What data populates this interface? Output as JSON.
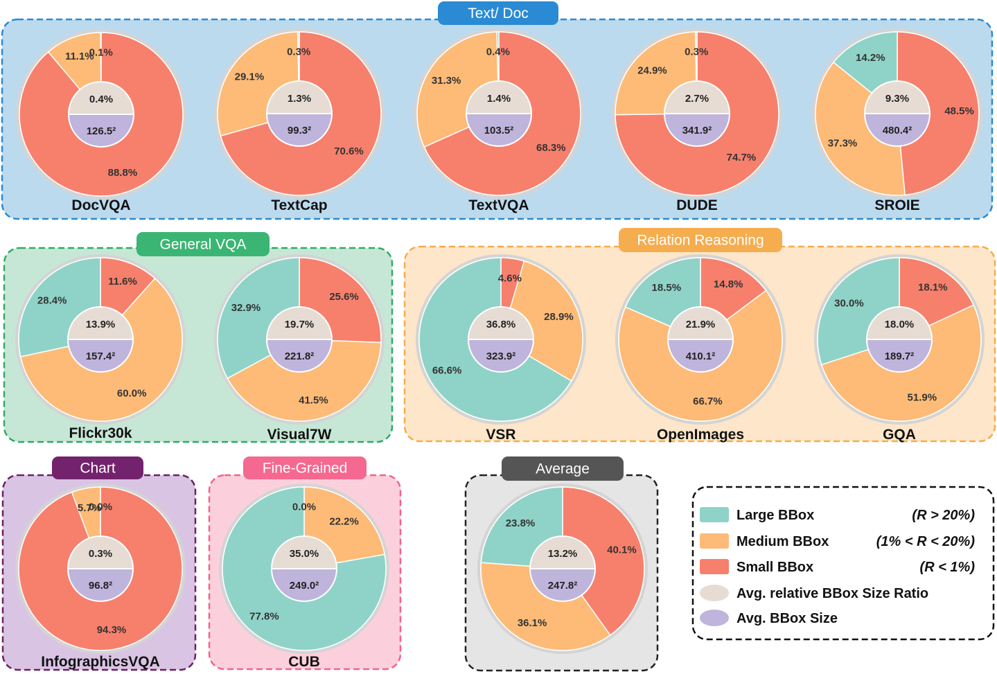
{
  "colors": {
    "large": "#8fd3c8",
    "medium": "#fdbb77",
    "small": "#f7806c",
    "ratio": "#e6dcd4",
    "size": "#bfb4dc",
    "ring": "#d4d4d4"
  },
  "groups": [
    {
      "id": "textdoc",
      "title": "Text/ Doc",
      "fill": "#bcdaee",
      "stroke": "#2a8ad3",
      "title_bg": "#2a8ad3",
      "title_color": "#ffffff"
    },
    {
      "id": "generalvqa",
      "title": "General VQA",
      "fill": "#c7e7d6",
      "stroke": "#2eaa67",
      "title_bg": "#3bb573",
      "title_color": "#ffffff"
    },
    {
      "id": "relation",
      "title": "Relation Reasoning",
      "fill": "#fde6c9",
      "stroke": "#f4ac4b",
      "title_bg": "#f6ad4e",
      "title_color": "#ffffff"
    },
    {
      "id": "chart",
      "title": "Chart",
      "fill": "#d9c4e4",
      "stroke": "#6c1f66",
      "title_bg": "#73226d",
      "title_color": "#ffffff"
    },
    {
      "id": "finegrained",
      "title": "Fine-Grained",
      "fill": "#fbd0dc",
      "stroke": "#f3628a",
      "title_bg": "#f5688f",
      "title_color": "#ffffff"
    },
    {
      "id": "average",
      "title": "Average",
      "fill": "#e5e5e5",
      "stroke": "#222222",
      "title_bg": "#555555",
      "title_color": "#ffffff"
    }
  ],
  "chart_data": [
    {
      "type": "pie",
      "name": "DocVQA",
      "group": "textdoc",
      "categories": [
        "Large BBox",
        "Medium BBox",
        "Small BBox"
      ],
      "values": [
        0.1,
        11.1,
        88.8
      ],
      "labels": [
        "0.1%",
        "11.1%",
        "88.8%"
      ],
      "ratio": "0.4%",
      "size": "126.5²"
    },
    {
      "type": "pie",
      "name": "TextCap",
      "group": "textdoc",
      "categories": [
        "Large BBox",
        "Medium BBox",
        "Small BBox"
      ],
      "values": [
        0.3,
        29.1,
        70.6
      ],
      "labels": [
        "0.3%",
        "29.1%",
        "70.6%"
      ],
      "ratio": "1.3%",
      "size": "99.3²"
    },
    {
      "type": "pie",
      "name": "TextVQA",
      "group": "textdoc",
      "categories": [
        "Large BBox",
        "Medium BBox",
        "Small BBox"
      ],
      "values": [
        0.4,
        31.3,
        68.3
      ],
      "labels": [
        "0.4%",
        "31.3%",
        "68.3%"
      ],
      "ratio": "1.4%",
      "size": "103.5²"
    },
    {
      "type": "pie",
      "name": "DUDE",
      "group": "textdoc",
      "categories": [
        "Large BBox",
        "Medium BBox",
        "Small BBox"
      ],
      "values": [
        0.3,
        24.9,
        74.7
      ],
      "labels": [
        "0.3%",
        "24.9%",
        "74.7%"
      ],
      "ratio": "2.7%",
      "size": "341.9²"
    },
    {
      "type": "pie",
      "name": "SROIE",
      "group": "textdoc",
      "categories": [
        "Large BBox",
        "Medium BBox",
        "Small BBox"
      ],
      "values": [
        14.2,
        37.3,
        48.5
      ],
      "labels": [
        "14.2%",
        "37.3%",
        "48.5%"
      ],
      "ratio": "9.3%",
      "size": "480.4²"
    },
    {
      "type": "pie",
      "name": "Flickr30k",
      "group": "generalvqa",
      "categories": [
        "Large BBox",
        "Medium BBox",
        "Small BBox"
      ],
      "values": [
        28.4,
        60.0,
        11.6
      ],
      "labels": [
        "28.4%",
        "60.0%",
        "11.6%"
      ],
      "ratio": "13.9%",
      "size": "157.4²"
    },
    {
      "type": "pie",
      "name": "Visual7W",
      "group": "generalvqa",
      "categories": [
        "Large BBox",
        "Medium BBox",
        "Small BBox"
      ],
      "values": [
        32.9,
        41.5,
        25.6
      ],
      "labels": [
        "32.9%",
        "41.5%",
        "25.6%"
      ],
      "ratio": "19.7%",
      "size": "221.8²"
    },
    {
      "type": "pie",
      "name": "VSR",
      "group": "relation",
      "categories": [
        "Large BBox",
        "Medium BBox",
        "Small BBox"
      ],
      "values": [
        66.6,
        28.9,
        4.6
      ],
      "labels": [
        "66.6%",
        "28.9%",
        "4.6%"
      ],
      "ratio": "36.8%",
      "size": "323.9²"
    },
    {
      "type": "pie",
      "name": "OpenImages",
      "group": "relation",
      "categories": [
        "Large BBox",
        "Medium BBox",
        "Small BBox"
      ],
      "values": [
        18.5,
        66.7,
        14.8
      ],
      "labels": [
        "18.5%",
        "66.7%",
        "14.8%"
      ],
      "ratio": "21.9%",
      "size": "410.1²"
    },
    {
      "type": "pie",
      "name": "GQA",
      "group": "relation",
      "categories": [
        "Large BBox",
        "Medium BBox",
        "Small BBox"
      ],
      "values": [
        30.0,
        51.9,
        18.1
      ],
      "labels": [
        "30.0%",
        "51.9%",
        "18.1%"
      ],
      "ratio": "18.0%",
      "size": "189.7²"
    },
    {
      "type": "pie",
      "name": "InfographicsVQA",
      "group": "chart",
      "categories": [
        "Large BBox",
        "Medium BBox",
        "Small BBox"
      ],
      "values": [
        0.0,
        5.7,
        94.3
      ],
      "labels": [
        "0.0%",
        "5.7%",
        "94.3%"
      ],
      "ratio": "0.3%",
      "size": "96.8²"
    },
    {
      "type": "pie",
      "name": "CUB",
      "group": "finegrained",
      "categories": [
        "Large BBox",
        "Medium BBox",
        "Small BBox"
      ],
      "values": [
        77.8,
        22.2,
        0.0
      ],
      "labels": [
        "77.8%",
        "22.2%",
        "0.0%"
      ],
      "ratio": "35.0%",
      "size": "249.0²"
    },
    {
      "type": "pie",
      "name": "Average",
      "group": "average",
      "categories": [
        "Large BBox",
        "Medium BBox",
        "Small BBox"
      ],
      "values": [
        23.8,
        36.1,
        40.1
      ],
      "labels": [
        "23.8%",
        "36.1%",
        "40.1%"
      ],
      "ratio": "13.2%",
      "size": "247.8²"
    }
  ],
  "legend": {
    "items": [
      {
        "key": "large",
        "label": "Large BBox",
        "condition": "(R > 20%)"
      },
      {
        "key": "medium",
        "label": "Medium BBox",
        "condition": "(1% < R < 20%)"
      },
      {
        "key": "small",
        "label": "Small BBox",
        "condition": "(R < 1%)"
      },
      {
        "key": "ratio",
        "label": "Avg. relative BBox Size Ratio",
        "condition": ""
      },
      {
        "key": "size",
        "label": "Avg. BBox Size",
        "condition": ""
      }
    ]
  }
}
